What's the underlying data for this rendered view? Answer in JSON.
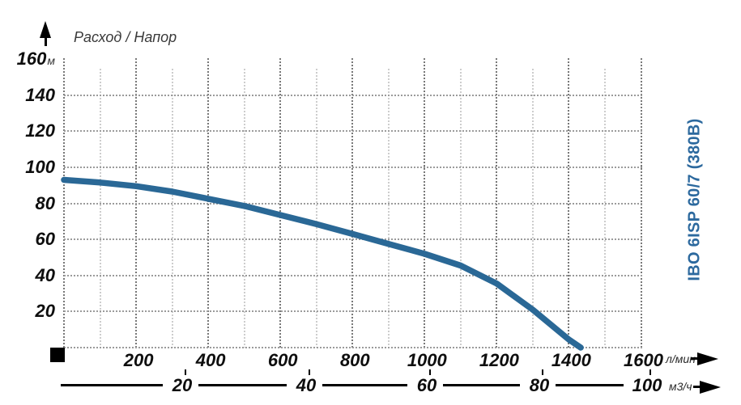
{
  "title": "Расход / Напор",
  "side_label": "IBO 6ISP 60/7 (380В)",
  "y_axis": {
    "ticks": [
      160,
      140,
      120,
      100,
      80,
      60,
      40,
      20
    ],
    "unit": "м"
  },
  "x_axis": {
    "ticks": [
      200,
      400,
      600,
      800,
      1000,
      1200,
      1400,
      1600
    ],
    "unit": "л/мин"
  },
  "x_axis_secondary": {
    "ticks": [
      20,
      40,
      60,
      80,
      100
    ],
    "unit": "м3/ч"
  },
  "colors": {
    "curve": "#2a6896",
    "side_label": "#2c699e",
    "grid_major": "#787878",
    "grid_minor": "#cdcdcd",
    "grid_horizontal": "#9b9b9b",
    "text": "#0e0e0e"
  },
  "chart_data": {
    "type": "line",
    "title": "Расход / Напор",
    "xlabel": "л/мин",
    "xlabel_secondary": "м3/ч",
    "ylabel": "м",
    "xlim": [
      0,
      1600
    ],
    "ylim": [
      0,
      160
    ],
    "x_ticks": [
      200,
      400,
      600,
      800,
      1000,
      1200,
      1400,
      1600
    ],
    "y_ticks": [
      20,
      40,
      60,
      80,
      100,
      120,
      140,
      160
    ],
    "secondary_x_ticks": [
      20,
      40,
      60,
      80,
      100
    ],
    "grid": true,
    "legend_position": "right-vertical",
    "series": [
      {
        "name": "IBO 6ISP 60/7 (380В)",
        "x": [
          0,
          100,
          200,
          300,
          400,
          500,
          600,
          700,
          800,
          900,
          1000,
          1100,
          1200,
          1300,
          1400,
          1433
        ],
        "y": [
          93,
          91.5,
          89.5,
          86.5,
          82.5,
          78.5,
          73.5,
          68.5,
          63,
          57.5,
          52,
          45.5,
          35.5,
          21,
          4.5,
          0
        ]
      }
    ]
  }
}
